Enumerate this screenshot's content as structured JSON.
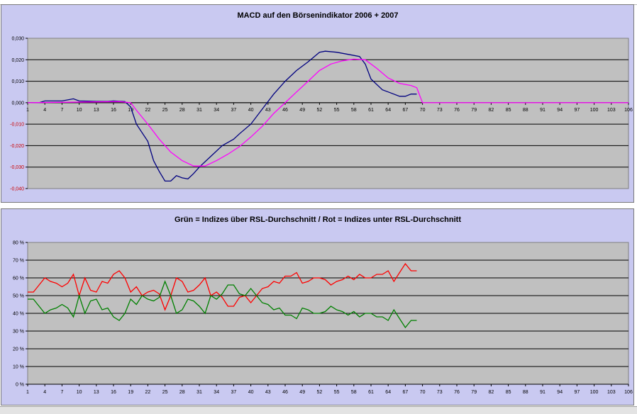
{
  "chart_data": [
    {
      "type": "line",
      "title": "MACD auf den Börsenindikator 2006 + 2007",
      "ylim": [
        -0.04,
        0.03
      ],
      "yticks": [
        "0,030",
        "0,020",
        "0,010",
        "0,000",
        "-0,010",
        "-0,020",
        "-0,030",
        "-0,040"
      ],
      "xticks": [
        "1",
        "4",
        "7",
        "10",
        "13",
        "16",
        "19",
        "22",
        "25",
        "28",
        "31",
        "34",
        "37",
        "40",
        "43",
        "46",
        "49",
        "52",
        "55",
        "58",
        "61",
        "64",
        "67",
        "70",
        "73",
        "76",
        "79",
        "82",
        "85",
        "88",
        "91",
        "94",
        "97",
        "100",
        "103",
        "106"
      ],
      "xlim": [
        1,
        106
      ],
      "plot_bg": "#c0c0c0",
      "grid": true,
      "series": [
        {
          "color": "#000080",
          "points": [
            [
              1,
              0
            ],
            [
              3,
              0
            ],
            [
              4,
              0.0008
            ],
            [
              7,
              0.0008
            ],
            [
              9,
              0.0018
            ],
            [
              10,
              0.0008
            ],
            [
              13,
              0.0006
            ],
            [
              15,
              0.0006
            ],
            [
              16,
              0.0008
            ],
            [
              18,
              0.0005
            ],
            [
              19,
              -0.002
            ],
            [
              20,
              -0.01
            ],
            [
              22,
              -0.018
            ],
            [
              23,
              -0.027
            ],
            [
              24,
              -0.032
            ],
            [
              25,
              -0.0365
            ],
            [
              26,
              -0.0365
            ],
            [
              27,
              -0.034
            ],
            [
              28,
              -0.035
            ],
            [
              29,
              -0.0355
            ],
            [
              30,
              -0.033
            ],
            [
              31,
              -0.03
            ],
            [
              33,
              -0.025
            ],
            [
              35,
              -0.02
            ],
            [
              37,
              -0.017
            ],
            [
              38,
              -0.0145
            ],
            [
              40,
              -0.01
            ],
            [
              42,
              -0.003
            ],
            [
              44,
              0.004
            ],
            [
              46,
              0.01
            ],
            [
              48,
              0.015
            ],
            [
              50,
              0.019
            ],
            [
              52,
              0.0235
            ],
            [
              53,
              0.024
            ],
            [
              55,
              0.0235
            ],
            [
              58,
              0.022
            ],
            [
              59,
              0.0215
            ],
            [
              60,
              0.018
            ],
            [
              61,
              0.011
            ],
            [
              63,
              0.006
            ],
            [
              64,
              0.005
            ],
            [
              66,
              0.003
            ],
            [
              67,
              0.003
            ],
            [
              68,
              0.004
            ],
            [
              69,
              0.004
            ]
          ]
        },
        {
          "color": "#ff00ff",
          "points": [
            [
              1,
              0
            ],
            [
              17,
              0.0005
            ],
            [
              19,
              0
            ],
            [
              20,
              -0.0035
            ],
            [
              22,
              -0.01
            ],
            [
              24,
              -0.017
            ],
            [
              26,
              -0.023
            ],
            [
              28,
              -0.027
            ],
            [
              30,
              -0.0295
            ],
            [
              32,
              -0.0295
            ],
            [
              34,
              -0.027
            ],
            [
              36,
              -0.024
            ],
            [
              38,
              -0.0205
            ],
            [
              40,
              -0.016
            ],
            [
              42,
              -0.011
            ],
            [
              44,
              -0.005
            ],
            [
              46,
              0
            ],
            [
              48,
              0.005
            ],
            [
              50,
              0.01
            ],
            [
              52,
              0.015
            ],
            [
              54,
              0.018
            ],
            [
              56,
              0.0195
            ],
            [
              58,
              0.0203
            ],
            [
              60,
              0.02
            ],
            [
              62,
              0.016
            ],
            [
              64,
              0.0115
            ],
            [
              66,
              0.009
            ],
            [
              68,
              0.008
            ],
            [
              69,
              0.007
            ],
            [
              70,
              0
            ],
            [
              106,
              0
            ]
          ]
        }
      ]
    },
    {
      "type": "line",
      "title": "Grün = Indizes über RSL-Durchschnitt / Rot = Indizes unter RSL-Durchschnitt",
      "ylim": [
        0,
        80
      ],
      "yticks": [
        "80 %",
        "70 %",
        "60 %",
        "50 %",
        "40 %",
        "30 %",
        "20 %",
        "10 %",
        "0 %"
      ],
      "xticks": [
        "1",
        "4",
        "7",
        "10",
        "13",
        "16",
        "19",
        "22",
        "25",
        "28",
        "31",
        "34",
        "37",
        "40",
        "43",
        "46",
        "49",
        "52",
        "55",
        "58",
        "61",
        "64",
        "67",
        "70",
        "73",
        "76",
        "79",
        "82",
        "85",
        "88",
        "91",
        "94",
        "97",
        "100",
        "103",
        "106"
      ],
      "xlim": [
        1,
        106
      ],
      "plot_bg": "#c0c0c0",
      "grid": true,
      "series": [
        {
          "color": "#ff0000",
          "points": [
            [
              1,
              52
            ],
            [
              2,
              52
            ],
            [
              3,
              56
            ],
            [
              4,
              60
            ],
            [
              5,
              58
            ],
            [
              6,
              57
            ],
            [
              7,
              55
            ],
            [
              8,
              57
            ],
            [
              9,
              62
            ],
            [
              10,
              50
            ],
            [
              11,
              60
            ],
            [
              12,
              53
            ],
            [
              13,
              52
            ],
            [
              14,
              58
            ],
            [
              15,
              57
            ],
            [
              16,
              62
            ],
            [
              17,
              64
            ],
            [
              18,
              60
            ],
            [
              19,
              52
            ],
            [
              20,
              55
            ],
            [
              21,
              50
            ],
            [
              22,
              52
            ],
            [
              23,
              53
            ],
            [
              24,
              51
            ],
            [
              25,
              42
            ],
            [
              26,
              50
            ],
            [
              27,
              60
            ],
            [
              28,
              58
            ],
            [
              29,
              52
            ],
            [
              30,
              53
            ],
            [
              31,
              56
            ],
            [
              32,
              60
            ],
            [
              33,
              50
            ],
            [
              34,
              52
            ],
            [
              35,
              49
            ],
            [
              36,
              44
            ],
            [
              37,
              44
            ],
            [
              38,
              49
            ],
            [
              39,
              50
            ],
            [
              40,
              46
            ],
            [
              41,
              50
            ],
            [
              42,
              54
            ],
            [
              43,
              55
            ],
            [
              44,
              58
            ],
            [
              45,
              57
            ],
            [
              46,
              61
            ],
            [
              47,
              61
            ],
            [
              48,
              63
            ],
            [
              49,
              57
            ],
            [
              50,
              58
            ],
            [
              51,
              60
            ],
            [
              52,
              60
            ],
            [
              53,
              59
            ],
            [
              54,
              56
            ],
            [
              55,
              58
            ],
            [
              56,
              59
            ],
            [
              57,
              61
            ],
            [
              58,
              59
            ],
            [
              59,
              62
            ],
            [
              60,
              60
            ],
            [
              61,
              60
            ],
            [
              62,
              62
            ],
            [
              63,
              62
            ],
            [
              64,
              64
            ],
            [
              65,
              58
            ],
            [
              66,
              63
            ],
            [
              67,
              68
            ],
            [
              68,
              64
            ],
            [
              69,
              64
            ]
          ]
        },
        {
          "color": "#008000",
          "points": [
            [
              1,
              48
            ],
            [
              2,
              48
            ],
            [
              3,
              44
            ],
            [
              4,
              40
            ],
            [
              5,
              42
            ],
            [
              6,
              43
            ],
            [
              7,
              45
            ],
            [
              8,
              43
            ],
            [
              9,
              38
            ],
            [
              10,
              50
            ],
            [
              11,
              40
            ],
            [
              12,
              47
            ],
            [
              13,
              48
            ],
            [
              14,
              42
            ],
            [
              15,
              43
            ],
            [
              16,
              38
            ],
            [
              17,
              36
            ],
            [
              18,
              40
            ],
            [
              19,
              48
            ],
            [
              20,
              45
            ],
            [
              21,
              50
            ],
            [
              22,
              48
            ],
            [
              23,
              47
            ],
            [
              24,
              49
            ],
            [
              25,
              58
            ],
            [
              26,
              50
            ],
            [
              27,
              40
            ],
            [
              28,
              42
            ],
            [
              29,
              48
            ],
            [
              30,
              47
            ],
            [
              31,
              44
            ],
            [
              32,
              40
            ],
            [
              33,
              50
            ],
            [
              34,
              48
            ],
            [
              35,
              51
            ],
            [
              36,
              56
            ],
            [
              37,
              56
            ],
            [
              38,
              51
            ],
            [
              39,
              50
            ],
            [
              40,
              54
            ],
            [
              41,
              50
            ],
            [
              42,
              46
            ],
            [
              43,
              45
            ],
            [
              44,
              42
            ],
            [
              45,
              43
            ],
            [
              46,
              39
            ],
            [
              47,
              39
            ],
            [
              48,
              37
            ],
            [
              49,
              43
            ],
            [
              50,
              42
            ],
            [
              51,
              40
            ],
            [
              52,
              40
            ],
            [
              53,
              41
            ],
            [
              54,
              44
            ],
            [
              55,
              42
            ],
            [
              56,
              41
            ],
            [
              57,
              39
            ],
            [
              58,
              41
            ],
            [
              59,
              38
            ],
            [
              60,
              40
            ],
            [
              61,
              40
            ],
            [
              62,
              38
            ],
            [
              63,
              38
            ],
            [
              64,
              36
            ],
            [
              65,
              42
            ],
            [
              66,
              37
            ],
            [
              67,
              32
            ],
            [
              68,
              36
            ],
            [
              69,
              36
            ]
          ]
        }
      ]
    }
  ]
}
